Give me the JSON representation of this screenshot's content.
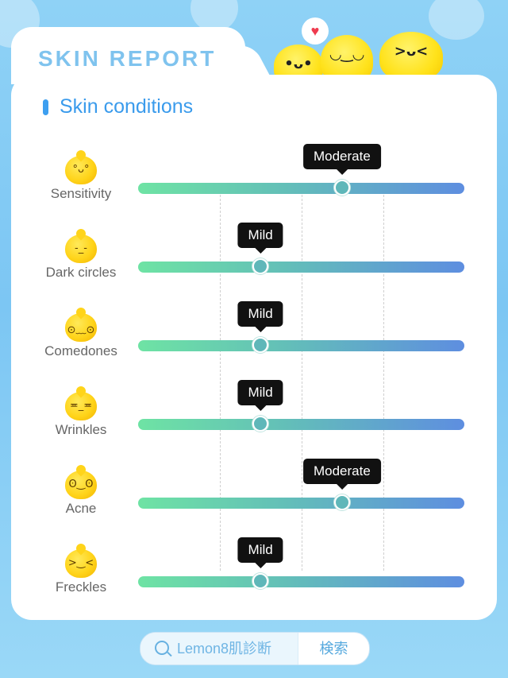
{
  "header": {
    "title": "SKIN REPORT"
  },
  "section": {
    "title": "Skin conditions"
  },
  "scale_positions": 4,
  "conditions": [
    {
      "label": "Sensitivity",
      "level": "Moderate",
      "value": 2.5,
      "face": "°ᴗ°"
    },
    {
      "label": "Dark circles",
      "level": "Mild",
      "value": 1.5,
      "face": "-_-"
    },
    {
      "label": "Comedones",
      "level": "Mild",
      "value": 1.5,
      "face": "⊙﹏⊙"
    },
    {
      "label": "Wrinkles",
      "level": "Mild",
      "value": 1.5,
      "face": "≖_≖"
    },
    {
      "label": "Acne",
      "level": "Moderate",
      "value": 2.5,
      "face": "ʘ‿ʘ"
    },
    {
      "label": "Freckles",
      "level": "Mild",
      "value": 1.5,
      "face": ">‿<"
    }
  ],
  "mascots": [
    {
      "name": "lemon-left",
      "face": "•ᴗ•"
    },
    {
      "name": "lemon-middle",
      "face": "◡‿◡"
    },
    {
      "name": "lemon-right",
      "face": ">ᴗ<"
    }
  ],
  "search": {
    "query": "Lemon8肌診断",
    "button_label": "検索"
  },
  "colors": {
    "accent": "#3a9bec",
    "tooltip": "#111111",
    "track_start": "#6ee3a4",
    "track_end": "#5e8ee0"
  }
}
